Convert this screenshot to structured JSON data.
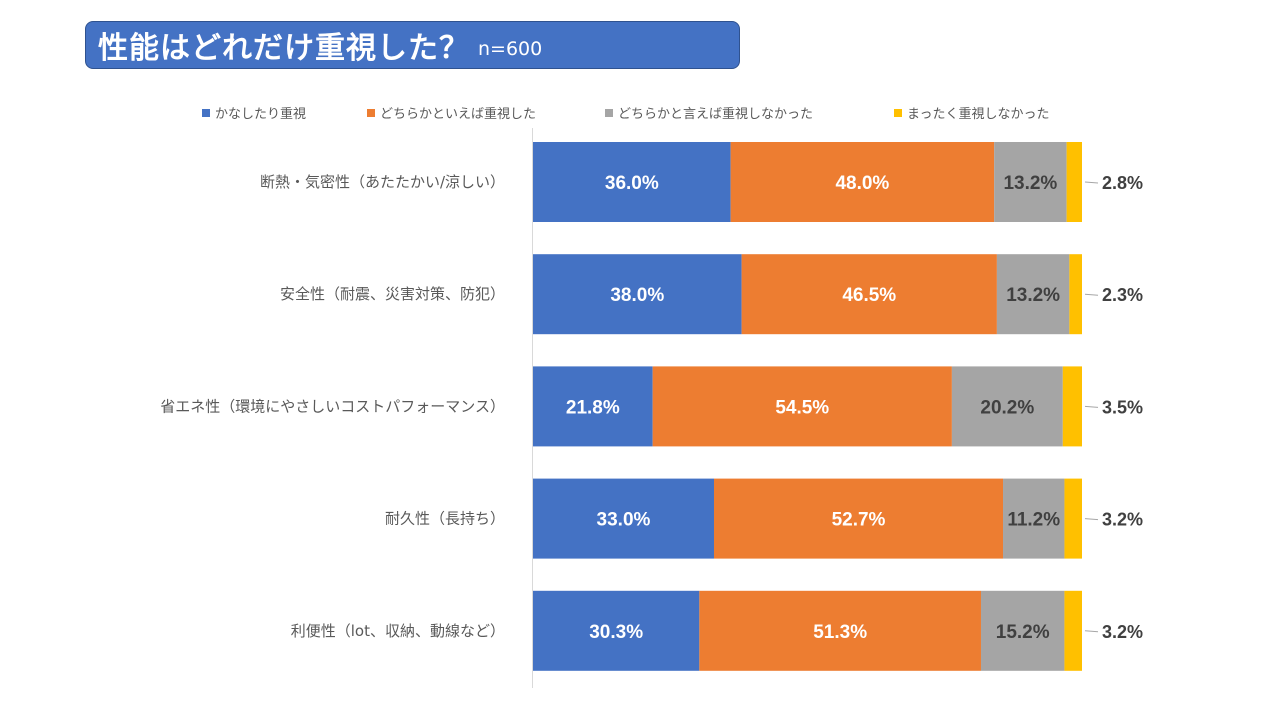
{
  "title": {
    "main": "性能はどれだけ重視した？",
    "sample": "n=600"
  },
  "chart_data": {
    "type": "bar",
    "orientation": "horizontal",
    "stacked": true,
    "stack_mode": "percent",
    "title": "性能はどれだけ重視した？",
    "subtitle": "n=600",
    "xlabel": "",
    "ylabel": "",
    "xlim": [
      0,
      100
    ],
    "legend_position": "top",
    "grid": false,
    "categories": [
      "断熱・気密性（あたたかい/涼しい）",
      "安全性（耐震、災害対策、防犯）",
      "省エネ性（環境にやさしいコストパフォーマンス）",
      "耐久性（長持ち）",
      "利便性（lot、収納、動線など）"
    ],
    "series": [
      {
        "name": "かなしたり重視",
        "color": "#4472c4",
        "label_color": "#ffffff",
        "values": [
          36.0,
          38.0,
          21.8,
          33.0,
          30.3
        ],
        "labels": [
          "36.0%",
          "38.0%",
          "21.8%",
          "33.0%",
          "30.3%"
        ]
      },
      {
        "name": "どちらかといえば重視した",
        "color": "#ed7d31",
        "label_color": "#ffffff",
        "values": [
          48.0,
          46.5,
          54.5,
          52.7,
          51.3
        ],
        "labels": [
          "48.0%",
          "46.5%",
          "54.5%",
          "52.7%",
          "51.3%"
        ]
      },
      {
        "name": "どちらかと言えば重視しなかった",
        "color": "#a5a5a5",
        "label_color": "#404040",
        "values": [
          13.2,
          13.2,
          20.2,
          11.2,
          15.2
        ],
        "labels": [
          "13.2%",
          "13.2%",
          "20.2%",
          "11.2%",
          "15.2%"
        ]
      },
      {
        "name": "まったく重視しなかった",
        "color": "#ffc000",
        "label_color": "#404040",
        "label_outside": true,
        "values": [
          2.8,
          2.3,
          3.5,
          3.2,
          3.2
        ],
        "labels": [
          "2.8%",
          "2.3%",
          "3.5%",
          "3.2%",
          "3.2%"
        ]
      }
    ]
  }
}
